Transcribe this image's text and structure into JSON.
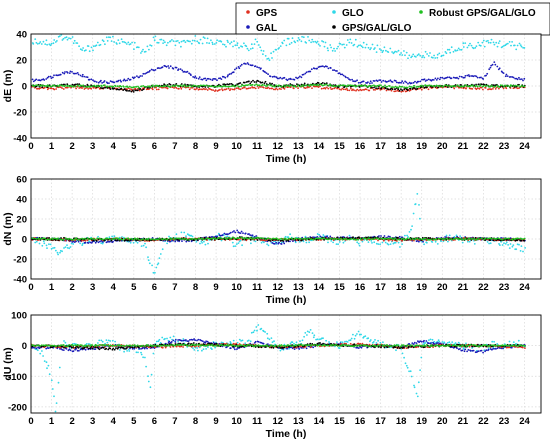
{
  "legend": {
    "entries": [
      {
        "label": "GPS",
        "color": "#e03020"
      },
      {
        "label": "GLO",
        "color": "#30d8e8"
      },
      {
        "label": "Robust GPS/GAL/GLO",
        "color": "#20c020"
      },
      {
        "label": "GAL",
        "color": "#1a1ab8"
      },
      {
        "label": "GPS/GAL/GLO",
        "color": "#000000"
      }
    ]
  },
  "chart_data": [
    {
      "type": "scatter",
      "xlabel": "Time (h)",
      "ylabel": "dE (m)",
      "xlim": [
        0,
        24.8
      ],
      "ylim": [
        -40,
        40
      ],
      "xticks": [
        "0",
        "1",
        "2",
        "3",
        "4",
        "5",
        "6",
        "7",
        "8",
        "9",
        "10",
        "11",
        "12",
        "13",
        "14",
        "15",
        "16",
        "17",
        "18",
        "19",
        "20",
        "21",
        "22",
        "23",
        "24"
      ],
      "yticks": [
        "40",
        "20",
        "0",
        "-20",
        "-40"
      ],
      "grid": true,
      "series": [
        {
          "name": "GLO",
          "color": "#30d8e8",
          "x": [
            0.0,
            0.5,
            1.0,
            1.5,
            2.0,
            2.5,
            3.0,
            3.5,
            4.0,
            4.5,
            5.0,
            5.5,
            6.0,
            6.5,
            7.0,
            7.5,
            8.0,
            8.5,
            9.0,
            9.5,
            10.0,
            10.5,
            11.0,
            11.5,
            12.0,
            12.5,
            13.0,
            13.5,
            14.0,
            14.5,
            15.0,
            15.5,
            16.0,
            16.5,
            17.0,
            17.5,
            18.0,
            18.5,
            19.0,
            19.5,
            20.0,
            20.5,
            21.0,
            21.5,
            22.0,
            22.5,
            23.0,
            23.5,
            24.0
          ],
          "y": [
            35,
            34,
            33,
            38,
            36,
            27,
            30,
            34,
            36,
            33,
            31,
            25,
            36,
            33,
            33,
            32,
            36,
            35,
            34,
            32,
            33,
            29,
            34,
            18,
            31,
            34,
            36,
            35,
            34,
            29,
            30,
            34,
            32,
            30,
            28,
            28,
            25,
            22,
            25,
            22,
            24,
            28,
            31,
            31,
            33,
            33,
            32,
            31,
            30
          ]
        },
        {
          "name": "GAL",
          "color": "#1a1ab8",
          "x": [
            0.0,
            0.5,
            1.0,
            1.5,
            2.0,
            2.5,
            3.0,
            3.5,
            4.0,
            4.5,
            5.0,
            5.5,
            6.0,
            6.5,
            7.0,
            7.5,
            8.0,
            8.5,
            9.0,
            9.5,
            10.0,
            10.5,
            11.0,
            11.5,
            12.0,
            12.5,
            13.0,
            13.5,
            14.0,
            14.5,
            15.0,
            15.5,
            16.0,
            16.5,
            17.0,
            17.5,
            18.0,
            18.5,
            19.0,
            19.5,
            20.0,
            20.5,
            21.0,
            21.5,
            22.0,
            22.5,
            23.0,
            23.5,
            24.0
          ],
          "y": [
            4,
            5,
            7,
            10,
            11,
            8,
            4,
            3,
            3,
            4,
            6,
            9,
            13,
            15,
            14,
            11,
            7,
            5,
            5,
            7,
            13,
            18,
            15,
            9,
            6,
            5,
            6,
            11,
            15,
            14,
            10,
            5,
            3,
            3,
            4,
            4,
            3,
            2,
            4,
            5,
            6,
            6,
            7,
            8,
            5,
            18,
            9,
            6,
            5
          ]
        },
        {
          "name": "GPS",
          "color": "#e03020",
          "x": [
            0,
            1,
            2,
            3,
            4,
            5,
            6,
            7,
            8,
            9,
            10,
            11,
            12,
            13,
            14,
            15,
            16,
            17,
            18,
            19,
            20,
            21,
            22,
            23,
            24
          ],
          "y": [
            -1,
            -2,
            -1,
            -2,
            -1,
            -3,
            -2,
            -1,
            -2,
            -3,
            -2,
            -1,
            -2,
            -1,
            -1,
            -2,
            -3,
            -2,
            -4,
            -2,
            -1,
            -1,
            -2,
            -1,
            -1
          ]
        },
        {
          "name": "GPS/GAL/GLO",
          "color": "#000000",
          "x": [
            0,
            1,
            2,
            3,
            4,
            5,
            6,
            7,
            8,
            9,
            10,
            11,
            12,
            13,
            14,
            15,
            16,
            17,
            18,
            19,
            20,
            21,
            22,
            23,
            24
          ],
          "y": [
            0,
            0,
            1,
            0,
            -2,
            -4,
            0,
            1,
            0,
            0,
            1,
            4,
            0,
            1,
            2,
            0,
            0,
            -1,
            -3,
            -1,
            0,
            0,
            1,
            0,
            0
          ]
        },
        {
          "name": "Robust GPS/GAL/GLO",
          "color": "#20c020",
          "x": [
            0,
            1,
            2,
            3,
            4,
            5,
            6,
            7,
            8,
            9,
            10,
            11,
            12,
            13,
            14,
            15,
            16,
            17,
            18,
            19,
            20,
            21,
            22,
            23,
            24
          ],
          "y": [
            0,
            0,
            0,
            0,
            0,
            -1,
            0,
            0,
            0,
            0,
            0,
            1,
            0,
            0,
            1,
            0,
            0,
            0,
            -1,
            0,
            0,
            0,
            0,
            0,
            0
          ]
        }
      ]
    },
    {
      "type": "scatter",
      "xlabel": "Time (h)",
      "ylabel": "dN (m)",
      "xlim": [
        0,
        24.8
      ],
      "ylim": [
        -40,
        60
      ],
      "xticks": [
        "0",
        "1",
        "2",
        "3",
        "4",
        "5",
        "6",
        "7",
        "8",
        "9",
        "10",
        "11",
        "12",
        "13",
        "14",
        "15",
        "16",
        "17",
        "18",
        "19",
        "20",
        "21",
        "22",
        "23",
        "24"
      ],
      "yticks": [
        "60",
        "40",
        "20",
        "0",
        "-20",
        "-40"
      ],
      "grid": true,
      "series": [
        {
          "name": "GLO",
          "color": "#30d8e8",
          "x": [
            0.0,
            0.5,
            1.0,
            1.4,
            2.0,
            2.5,
            3.0,
            3.5,
            4.0,
            4.5,
            5.0,
            5.5,
            5.8,
            6.0,
            6.5,
            7.0,
            7.5,
            8.0,
            8.5,
            9.0,
            9.5,
            10.0,
            10.5,
            11.0,
            11.5,
            12.0,
            12.5,
            13.0,
            13.5,
            14.0,
            14.5,
            15.0,
            15.5,
            16.0,
            16.5,
            17.0,
            17.5,
            18.0,
            18.5,
            18.8,
            19.0,
            19.5,
            20.0,
            20.5,
            21.0,
            21.5,
            22.0,
            22.5,
            23.0,
            23.5,
            24.0
          ],
          "y": [
            0,
            -3,
            -8,
            -15,
            -4,
            -3,
            0,
            -2,
            2,
            -1,
            -2,
            -5,
            -25,
            -35,
            -3,
            2,
            4,
            0,
            -3,
            3,
            0,
            -6,
            -2,
            1,
            -3,
            -2,
            2,
            -1,
            0,
            3,
            -1,
            -2,
            2,
            -4,
            -1,
            -2,
            -3,
            -5,
            10,
            50,
            -4,
            -2,
            -1,
            2,
            -1,
            -2,
            -1,
            -2,
            -4,
            -8,
            -10
          ]
        },
        {
          "name": "GAL",
          "color": "#1a1ab8",
          "x": [
            0,
            1,
            2,
            3,
            4,
            5,
            6,
            7,
            8,
            9,
            10,
            11,
            12,
            13,
            14,
            15,
            16,
            17,
            18,
            19,
            20,
            21,
            22,
            23,
            24
          ],
          "y": [
            0,
            0,
            -2,
            -3,
            -2,
            -1,
            0,
            -2,
            -1,
            3,
            8,
            2,
            -5,
            0,
            2,
            1,
            0,
            2,
            1,
            -2,
            1,
            1,
            0,
            0,
            -1
          ]
        },
        {
          "name": "GPS",
          "color": "#e03020",
          "x": [
            0,
            2,
            4,
            6,
            8,
            10,
            12,
            14,
            16,
            18,
            20,
            22,
            24
          ],
          "y": [
            0,
            -1,
            0,
            -1,
            0,
            0,
            -1,
            0,
            0,
            -1,
            0,
            0,
            -1
          ]
        },
        {
          "name": "GPS/GAL/GLO",
          "color": "#000000",
          "x": [
            0,
            2,
            4,
            6,
            8,
            10,
            12,
            14,
            16,
            18,
            20,
            22,
            24
          ],
          "y": [
            0,
            0,
            -1,
            0,
            0,
            1,
            -1,
            0,
            1,
            0,
            0,
            0,
            -1
          ]
        },
        {
          "name": "Robust GPS/GAL/GLO",
          "color": "#20c020",
          "x": [
            0,
            2,
            4,
            6,
            8,
            10,
            12,
            14,
            16,
            18,
            20,
            22,
            24
          ],
          "y": [
            0,
            0,
            0,
            0,
            0,
            1,
            0,
            0,
            0,
            0,
            0,
            0,
            0
          ]
        }
      ]
    },
    {
      "type": "scatter",
      "xlabel": "Time (h)",
      "ylabel": "dU (m)",
      "xlim": [
        0,
        24.8
      ],
      "ylim": [
        -220,
        100
      ],
      "xticks": [
        "0",
        "1",
        "2",
        "3",
        "4",
        "5",
        "6",
        "7",
        "8",
        "9",
        "10",
        "11",
        "12",
        "13",
        "14",
        "15",
        "16",
        "17",
        "18",
        "19",
        "20",
        "21",
        "22",
        "23",
        "24"
      ],
      "yticks": [
        "100",
        "0",
        "-100",
        "-200"
      ],
      "grid": true,
      "series": [
        {
          "name": "GLO",
          "color": "#30d8e8",
          "x": [
            0.0,
            0.5,
            1.0,
            1.2,
            1.5,
            2.0,
            2.5,
            3.0,
            3.5,
            4.0,
            4.5,
            5.0,
            5.5,
            5.8,
            6.0,
            6.5,
            7.0,
            7.5,
            8.0,
            8.5,
            9.0,
            9.5,
            10.0,
            10.5,
            11.0,
            11.3,
            11.6,
            12.0,
            12.5,
            13.0,
            13.5,
            14.0,
            14.5,
            15.0,
            15.5,
            16.0,
            16.5,
            17.0,
            17.5,
            18.0,
            18.5,
            18.8,
            19.0,
            19.5,
            20.0,
            20.5,
            21.0,
            21.5,
            22.0,
            22.5,
            23.0,
            23.5,
            24.0
          ],
          "y": [
            0,
            -20,
            -100,
            -210,
            5,
            0,
            -5,
            0,
            10,
            5,
            -10,
            -5,
            -30,
            -130,
            10,
            25,
            20,
            10,
            -5,
            -10,
            5,
            15,
            10,
            5,
            60,
            40,
            30,
            -10,
            0,
            5,
            45,
            20,
            5,
            0,
            20,
            40,
            10,
            5,
            -5,
            -10,
            -100,
            -180,
            -10,
            15,
            10,
            5,
            0,
            -10,
            -5,
            5,
            0,
            10,
            5
          ]
        },
        {
          "name": "GAL",
          "color": "#1a1ab8",
          "x": [
            0,
            1,
            2,
            3,
            4,
            5,
            6,
            7,
            8,
            9,
            10,
            11,
            12,
            13,
            14,
            15,
            16,
            17,
            18,
            19,
            20,
            21,
            22,
            23,
            24
          ],
          "y": [
            -10,
            -5,
            -15,
            -10,
            0,
            -8,
            -5,
            15,
            20,
            5,
            -10,
            10,
            -5,
            -10,
            0,
            5,
            -5,
            0,
            -5,
            15,
            5,
            -15,
            -20,
            -5,
            0
          ]
        },
        {
          "name": "GPS",
          "color": "#e03020",
          "x": [
            0,
            2,
            4,
            6,
            8,
            10,
            12,
            14,
            16,
            18,
            20,
            22,
            24
          ],
          "y": [
            0,
            -5,
            0,
            -5,
            0,
            5,
            -5,
            0,
            5,
            -5,
            0,
            0,
            -5
          ]
        },
        {
          "name": "GPS/GAL/GLO",
          "color": "#000000",
          "x": [
            0,
            2,
            4,
            6,
            8,
            10,
            12,
            14,
            16,
            18,
            20,
            22,
            24
          ],
          "y": [
            0,
            -5,
            -10,
            0,
            5,
            0,
            -5,
            5,
            0,
            -5,
            0,
            0,
            0
          ]
        },
        {
          "name": "Robust GPS/GAL/GLO",
          "color": "#20c020",
          "x": [
            0,
            2,
            4,
            6,
            8,
            10,
            12,
            14,
            16,
            18,
            20,
            22,
            24
          ],
          "y": [
            0,
            0,
            0,
            0,
            2,
            0,
            0,
            2,
            0,
            0,
            0,
            0,
            0
          ]
        }
      ]
    }
  ]
}
